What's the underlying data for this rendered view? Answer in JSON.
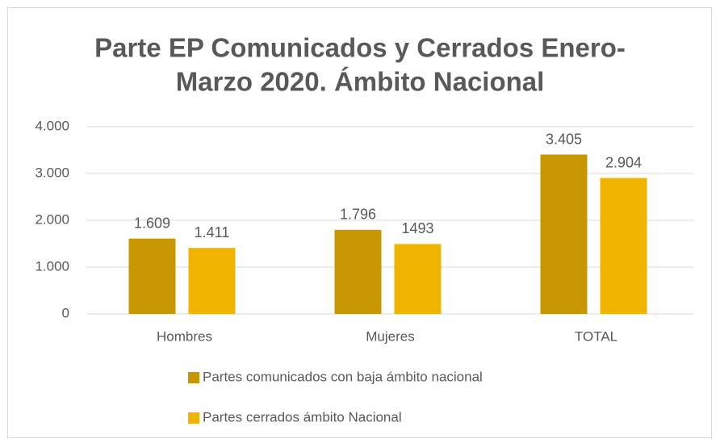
{
  "chart_data": {
    "type": "bar",
    "title": [
      "Parte EP Comunicados y Cerrados Enero-",
      "Marzo 2020. Ámbito Nacional"
    ],
    "categories": [
      "Hombres",
      "Mujeres",
      "TOTAL"
    ],
    "series": [
      {
        "name": "Partes comunicados con baja ámbito nacional",
        "color": "#c89600",
        "values": [
          1609,
          1796,
          3405
        ],
        "value_labels": [
          "1.609",
          "1.796",
          "3.405"
        ]
      },
      {
        "name": "Partes cerrados ámbito Nacional",
        "color": "#f0b400",
        "values": [
          1411,
          1493,
          2904
        ],
        "value_labels": [
          "1.411",
          "1493",
          "2.904"
        ]
      }
    ],
    "ylim": [
      0,
      4000
    ],
    "yticks": [
      0,
      {
        "value": 1000,
        "label": "1.000"
      },
      {
        "value": 2000,
        "label": "2.000"
      },
      {
        "value": 3000,
        "label": "3.000"
      },
      {
        "value": 4000,
        "label": "4.000"
      }
    ],
    "grid": true,
    "legend": "bottom"
  }
}
